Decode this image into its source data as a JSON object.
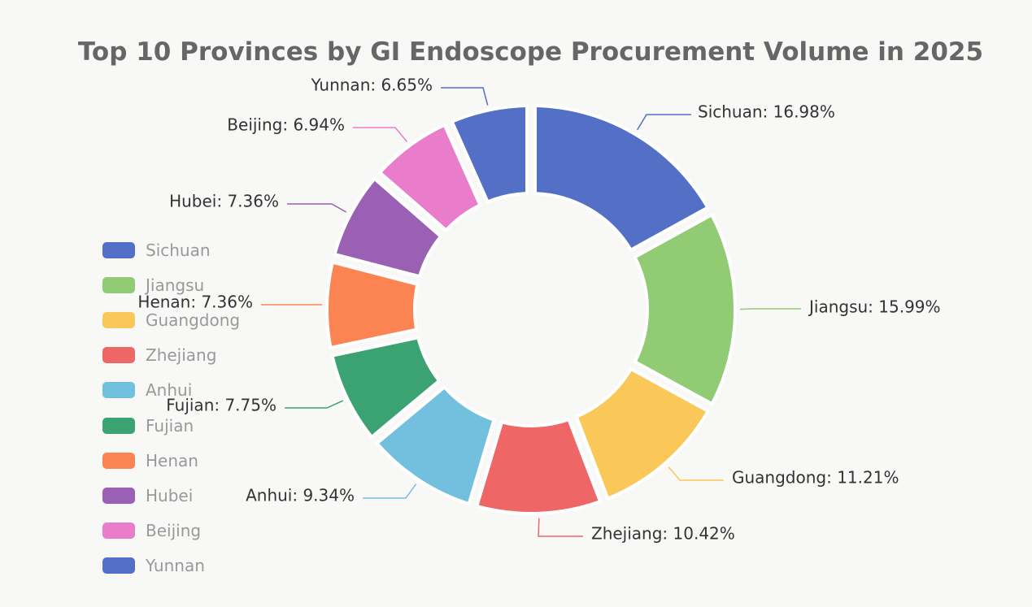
{
  "chart_data": {
    "type": "pie",
    "title": "Top 10 Provinces by GI Endoscope Procurement Volume in 2025",
    "donut": true,
    "legend_position": "left",
    "slices": [
      {
        "name": "Sichuan",
        "percent": 16.98,
        "label": "Sichuan: 16.98%",
        "color": "#5470c6"
      },
      {
        "name": "Jiangsu",
        "percent": 15.99,
        "label": "Jiangsu: 15.99%",
        "color": "#91cc75"
      },
      {
        "name": "Guangdong",
        "percent": 11.21,
        "label": "Guangdong: 11.21%",
        "color": "#fac858"
      },
      {
        "name": "Zhejiang",
        "percent": 10.42,
        "label": "Zhejiang: 10.42%",
        "color": "#ee6666"
      },
      {
        "name": "Anhui",
        "percent": 9.34,
        "label": "Anhui: 9.34%",
        "color": "#73c0de"
      },
      {
        "name": "Fujian",
        "percent": 7.75,
        "label": "Fujian: 7.75%",
        "color": "#3ba272"
      },
      {
        "name": "Henan",
        "percent": 7.36,
        "label": "Henan: 7.36%",
        "color": "#fc8452"
      },
      {
        "name": "Hubei",
        "percent": 7.36,
        "label": "Hubei: 7.36%",
        "color": "#9a60b4"
      },
      {
        "name": "Beijing",
        "percent": 6.94,
        "label": "Beijing: 6.94%",
        "color": "#ea7ccc"
      },
      {
        "name": "Yunnan",
        "percent": 6.65,
        "label": "Yunnan: 6.65%",
        "color": "#5470c6"
      }
    ]
  }
}
